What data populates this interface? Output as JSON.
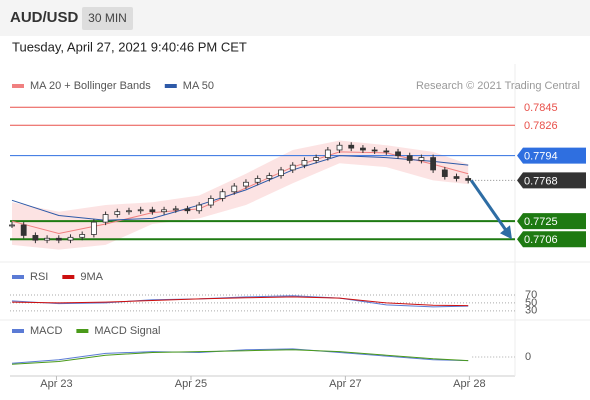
{
  "header": {
    "symbol": "AUD/USD",
    "interval": "30 MIN",
    "timestamp": "Tuesday, April 27, 2021 9:40:46 PM CET"
  },
  "chart_data": [
    {
      "type": "candlestick",
      "candle_color": "#333333",
      "credit": "Research © 2021 Trading Central",
      "values": [
        0.7721,
        0.771,
        0.7705,
        0.7707,
        0.7705,
        0.7708,
        0.7711,
        0.7724,
        0.7732,
        0.7735,
        0.7736,
        0.7737,
        0.7735,
        0.7737,
        0.7738,
        0.7736,
        0.7742,
        0.7749,
        0.7756,
        0.7762,
        0.7766,
        0.777,
        0.7773,
        0.7779,
        0.7784,
        0.7789,
        0.7792,
        0.78,
        0.7805,
        0.7802,
        0.78,
        0.7799,
        0.7798,
        0.7794,
        0.7789,
        0.7792,
        0.7779,
        0.7772,
        0.777,
        0.7768
      ],
      "series": [
        {
          "name": "MA 20 + Bollinger Bands",
          "color": "#f08080",
          "x": [
            0,
            4,
            8,
            12,
            16,
            20,
            24,
            28,
            32,
            36,
            39
          ],
          "values": [
            0.7725,
            0.7712,
            0.7722,
            0.7734,
            0.7738,
            0.776,
            0.7782,
            0.7798,
            0.7797,
            0.7785,
            0.7775
          ],
          "upper": [
            0.7745,
            0.7735,
            0.7742,
            0.7745,
            0.7752,
            0.7775,
            0.78,
            0.781,
            0.7805,
            0.7798,
            0.7785
          ],
          "lower": [
            0.77,
            0.7695,
            0.77,
            0.7722,
            0.7728,
            0.7742,
            0.7765,
            0.7786,
            0.7782,
            0.7768,
            0.7764
          ]
        },
        {
          "name": "MA 50",
          "color": "#2e5aa8",
          "x": [
            0,
            4,
            8,
            12,
            16,
            20,
            24,
            28,
            32,
            36,
            39
          ],
          "values": [
            0.7747,
            0.7731,
            0.7726,
            0.7728,
            0.7742,
            0.7758,
            0.7779,
            0.7794,
            0.7792,
            0.7788,
            0.7784
          ]
        }
      ],
      "levels": [
        {
          "value": 0.7845,
          "color": "#e8504a",
          "boxed": false
        },
        {
          "value": 0.7826,
          "color": "#e8504a",
          "boxed": false
        },
        {
          "value": 0.7794,
          "color": "#2f6fe0",
          "boxed": true
        },
        {
          "value": 0.7768,
          "color": "#333333",
          "boxed": true
        },
        {
          "value": 0.7725,
          "color": "#1e7a12",
          "boxed": true
        },
        {
          "value": 0.7706,
          "color": "#1e7a12",
          "boxed": true
        }
      ],
      "ylim": [
        0.7682,
        0.7879
      ],
      "xlim": [
        0,
        43
      ],
      "xticks": [
        {
          "value": 3.8,
          "label": "Apr 23"
        },
        {
          "value": 15.3,
          "label": "Apr 25"
        },
        {
          "value": 28.5,
          "label": "Apr 27"
        },
        {
          "value": 39.1,
          "label": "Apr 28"
        }
      ]
    },
    {
      "type": "line",
      "ylim": [
        12,
        95
      ],
      "yticks": [
        70,
        50,
        30
      ],
      "series": [
        {
          "name": "RSI",
          "color": "#5b7bd5",
          "x": [
            0,
            4,
            8,
            12,
            16,
            20,
            24,
            28,
            32,
            36,
            39
          ],
          "values": [
            55,
            48,
            50,
            58,
            60,
            65,
            68,
            62,
            45,
            40,
            42
          ]
        },
        {
          "name": "9MA",
          "color": "#cc1010",
          "x": [
            0,
            4,
            8,
            12,
            16,
            20,
            24,
            28,
            32,
            36,
            39
          ],
          "values": [
            52,
            50,
            52,
            56,
            60,
            63,
            65,
            62,
            50,
            44,
            43
          ]
        }
      ]
    },
    {
      "type": "line",
      "ylim": [
        -0.002,
        0.002
      ],
      "yticks": [
        0
      ],
      "series": [
        {
          "name": "MACD",
          "color": "#5b7bd5",
          "x": [
            0,
            4,
            8,
            12,
            16,
            20,
            24,
            28,
            32,
            36,
            39
          ],
          "values": [
            -0.0007,
            -0.0003,
            0.0004,
            0.0006,
            0.0005,
            0.0008,
            0.0009,
            0.0005,
            0.0001,
            -0.0003,
            -0.0004
          ]
        },
        {
          "name": "MACD Signal",
          "color": "#4a9a1a",
          "x": [
            0,
            4,
            8,
            12,
            16,
            20,
            24,
            28,
            32,
            36,
            39
          ],
          "values": [
            -0.0008,
            -0.0005,
            0.0002,
            0.0005,
            0.0006,
            0.0007,
            0.0008,
            0.0006,
            0.0002,
            -0.0002,
            -0.0004
          ]
        }
      ]
    }
  ]
}
